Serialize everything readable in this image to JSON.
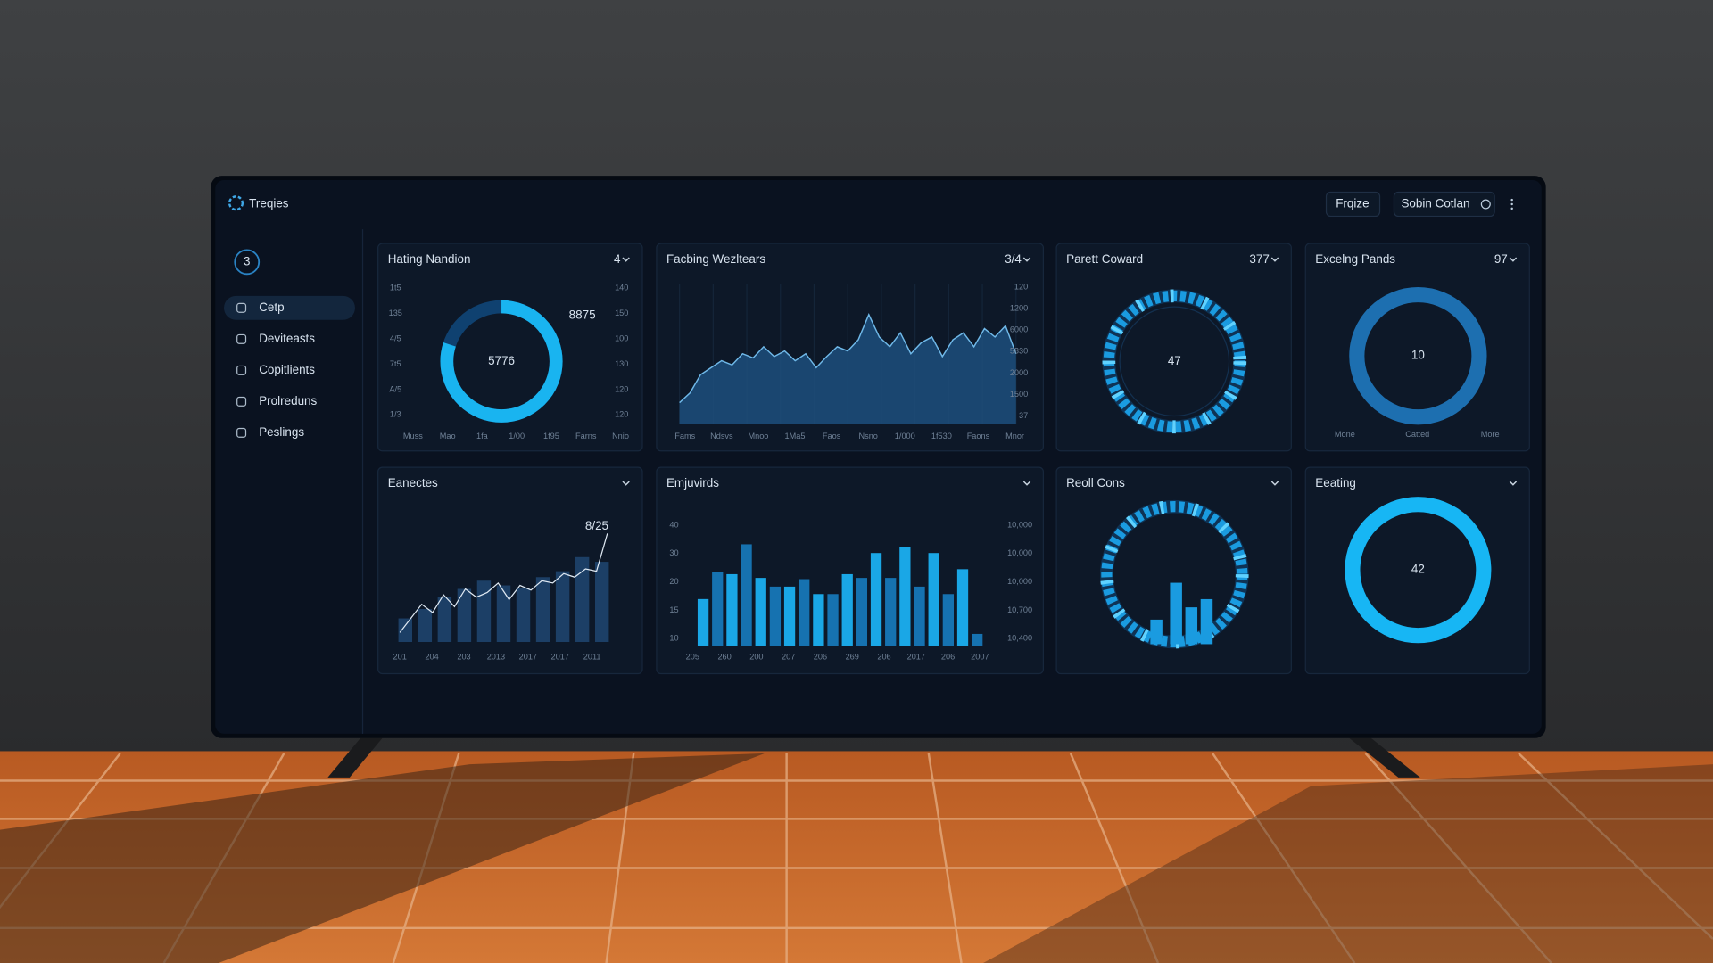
{
  "header": {
    "brand": "Treqies",
    "buttons": [
      "Frqize",
      "Sobin Cotlan"
    ]
  },
  "sidebar": {
    "avatar": 3,
    "items": [
      "Cetp",
      "Deviteasts",
      "Copitlients",
      "Prolreduns",
      "Peslings"
    ],
    "active": 0
  },
  "cards": [
    {
      "type": "donut",
      "title": "Hating Nandion",
      "badge": "4",
      "value": 5776,
      "side_value": 8875,
      "progress": 80,
      "color": "#19b4f0",
      "left_labels": [
        "1t5",
        "135",
        "4/5",
        "7t5",
        "A/5",
        "1/3"
      ],
      "right_labels": [
        "140",
        "150",
        "100",
        "130",
        "120",
        "120"
      ],
      "x_labels": [
        "Muss",
        "Mao",
        "1fa",
        "1/00",
        "1f95",
        "Farns",
        "Nnio"
      ]
    },
    {
      "type": "area",
      "title": "Facbing Wezltears",
      "badge": "3/4",
      "ylim": [
        0,
        100
      ],
      "color": "#1d4f7c",
      "values": [
        15,
        22,
        35,
        40,
        45,
        42,
        50,
        47,
        55,
        48,
        52,
        45,
        50,
        40,
        48,
        55,
        52,
        60,
        78,
        62,
        55,
        65,
        50,
        58,
        62,
        48,
        60,
        65,
        55,
        68,
        62,
        70,
        50
      ],
      "right_labels": [
        "120",
        "1200",
        "6000",
        "5830",
        "2000",
        "1500",
        "37"
      ],
      "x_labels": [
        "Fams",
        "Ndsvs",
        "Mnoo",
        "1Ma5",
        "Faos",
        "Nsno",
        "1/000",
        "1f530",
        "Faons",
        "Mnor"
      ]
    },
    {
      "type": "segment_ring",
      "title": "Parett Coward",
      "badge": "377",
      "value": 47,
      "color": "#1a9be0"
    },
    {
      "type": "ring",
      "title": "Excelng Pands",
      "badge": "97",
      "value": 10,
      "color": "#1d6fb0",
      "labels": [
        "Mone",
        "Catted",
        "More"
      ]
    },
    {
      "type": "combo",
      "title": "Eanectes",
      "value_label": "8/25",
      "ylim": [
        0,
        100
      ],
      "color": "#1c3f66",
      "bars": [
        20,
        28,
        38,
        45,
        52,
        48,
        46,
        55,
        60,
        72,
        68
      ],
      "line": [
        8,
        20,
        32,
        25,
        40,
        30,
        45,
        38,
        42,
        50,
        36,
        48,
        44,
        52,
        50,
        58,
        55,
        62,
        60,
        92
      ],
      "x_labels": [
        "201",
        "204",
        "203",
        "2013",
        "2017",
        "2017",
        "2011"
      ]
    },
    {
      "type": "bars",
      "title": "Emjuvirds",
      "ylim": [
        0,
        100
      ],
      "colors": [
        "#1aa7e6",
        "#1672b0"
      ],
      "values": [
        38,
        60,
        58,
        82,
        55,
        48,
        48,
        54,
        42,
        42,
        58,
        55,
        75,
        55,
        80,
        48,
        75,
        42,
        62,
        10
      ],
      "left_labels": [
        "40",
        "30",
        "20",
        "15",
        "10"
      ],
      "right_labels": [
        "10,000",
        "10,000",
        "10,000",
        "10,700",
        "10,400"
      ],
      "x_labels": [
        "205",
        "260",
        "200",
        "207",
        "206",
        "269",
        "206",
        "2017",
        "206",
        "2007"
      ]
    },
    {
      "type": "segment_bars",
      "title": "Reoll Cons",
      "ylim": [
        0,
        100
      ],
      "color": "#1a9be0",
      "values": [
        30,
        75,
        45,
        55
      ]
    },
    {
      "type": "ring",
      "title": "Eeating",
      "value": 42,
      "color": "#17b6f4"
    }
  ]
}
